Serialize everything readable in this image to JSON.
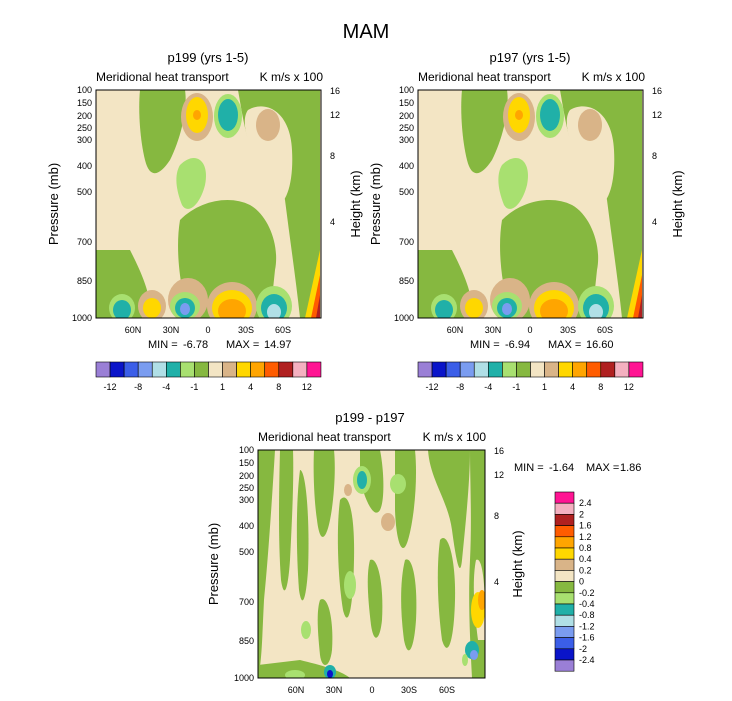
{
  "figure": {
    "title": "MAM"
  },
  "chart_data": [
    {
      "type": "heatmap",
      "id": "p199",
      "title": "p199 (yrs 1-5)",
      "subtitle_left": "Meridional heat transport",
      "subtitle_right": "K m/s x 100",
      "ylabel": "Pressure (mb)",
      "ylabel_right": "Height (km)",
      "y_ticks": [
        "100",
        "150",
        "200",
        "250",
        "300",
        "400",
        "500",
        "700",
        "850",
        "1000"
      ],
      "y_right_ticks": [
        "16",
        "12",
        "8",
        "4"
      ],
      "x_ticks": [
        "60N",
        "30N",
        "0",
        "30S",
        "60S"
      ],
      "x_range": [
        "90N",
        "90S"
      ],
      "y_range": [
        100,
        1000
      ],
      "stats": {
        "min_label": "MIN =",
        "min": "-6.78",
        "max_label": "MAX =",
        "max": "14.97"
      }
    },
    {
      "type": "heatmap",
      "id": "p197",
      "title": "p197 (yrs 1-5)",
      "subtitle_left": "Meridional heat transport",
      "subtitle_right": "K m/s x 100",
      "ylabel": "Pressure (mb)",
      "ylabel_right": "Height (km)",
      "y_ticks": [
        "100",
        "150",
        "200",
        "250",
        "300",
        "400",
        "500",
        "700",
        "850",
        "1000"
      ],
      "y_right_ticks": [
        "16",
        "12",
        "8",
        "4"
      ],
      "x_ticks": [
        "60N",
        "30N",
        "0",
        "30S",
        "60S"
      ],
      "x_range": [
        "90N",
        "90S"
      ],
      "y_range": [
        100,
        1000
      ],
      "stats": {
        "min_label": "MIN =",
        "min": "-6.94",
        "max_label": "MAX =",
        "max": "16.60"
      }
    },
    {
      "type": "heatmap",
      "id": "diff",
      "title": "p199 - p197",
      "subtitle_left": "Meridional heat transport",
      "subtitle_right": "K m/s x 100",
      "ylabel": "Pressure (mb)",
      "ylabel_right": "Height (km)",
      "y_ticks": [
        "100",
        "150",
        "200",
        "250",
        "300",
        "400",
        "500",
        "700",
        "850",
        "1000"
      ],
      "y_right_ticks": [
        "16",
        "12",
        "8",
        "4"
      ],
      "x_ticks": [
        "60N",
        "30N",
        "0",
        "30S",
        "60S"
      ],
      "x_range": [
        "90N",
        "90S"
      ],
      "y_range": [
        100,
        1000
      ],
      "stats": {
        "min_label": "MIN =",
        "min": "-1.64",
        "max_label": "MAX =",
        "max": "1.86"
      }
    }
  ],
  "colorbar_top": {
    "colors": [
      "#9a7fd6",
      "#0a14c9",
      "#3b5ee8",
      "#7a9cf0",
      "#b0dfe6",
      "#20b0a8",
      "#a8e070",
      "#86b840",
      "#f3e5c4",
      "#d9b488",
      "#ffd700",
      "#ffa500",
      "#ff5c00",
      "#b02020",
      "#f4b0c0",
      "#ff1493"
    ],
    "labels": [
      "-12",
      "-8",
      "-4",
      "-1",
      "1",
      "4",
      "8",
      "12"
    ]
  },
  "colorbar_diff": {
    "colors": [
      "#ff1493",
      "#f4b0c0",
      "#b02020",
      "#ff5c00",
      "#ffa500",
      "#ffd700",
      "#d9b488",
      "#f3e5c4",
      "#86b840",
      "#a8e070",
      "#20b0a8",
      "#b0dfe6",
      "#7a9cf0",
      "#3b5ee8",
      "#0a14c9",
      "#9a7fd6"
    ],
    "labels": [
      "2.4",
      "2",
      "1.6",
      "1.2",
      "0.8",
      "0.4",
      "0.2",
      "0",
      "-0.2",
      "-0.4",
      "-0.8",
      "-1.2",
      "-1.6",
      "-2",
      "-2.4"
    ]
  },
  "colors": {
    "neutral_pos": "#f3e5c4",
    "neutral_neg": "#86b840",
    "light_neg": "#a8e070",
    "tan": "#d9b488"
  }
}
